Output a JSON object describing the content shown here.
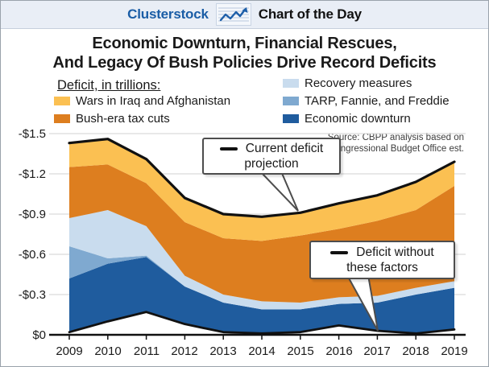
{
  "header": {
    "brand": "Clusterstock",
    "tagline": "Chart of the Day",
    "brand_color": "#1a5da6",
    "icon": "line-chart-icon"
  },
  "title": {
    "line1": "Economic Downturn, Financial Rescues,",
    "line2": "And Legacy Of Bush Policies Drive Record Deficits"
  },
  "legend": {
    "heading": "Deficit, in trillions:",
    "items": [
      {
        "label": "Wars in Iraq and Afghanistan",
        "color": "#FBC052"
      },
      {
        "label": "Bush-era tax cuts",
        "color": "#DD7E1F"
      },
      {
        "label": "Recovery measures",
        "color": "#C9DCEE"
      },
      {
        "label": "TARP, Fannie, and Freddie",
        "color": "#7FA9D0"
      },
      {
        "label": "Economic downturn",
        "color": "#1F5C9E"
      }
    ]
  },
  "source": {
    "line1": "Source: CBPP analysis based on",
    "line2": "Congressional Budget Office est."
  },
  "callouts": [
    {
      "line1": "Current deficit",
      "line2": "projection"
    },
    {
      "line1": "Deficit without",
      "line2": "these factors"
    }
  ],
  "chart_data": {
    "type": "area",
    "stacked": true,
    "title": "Deficit, in trillions",
    "units": "trillions of dollars, deficits shown as negative",
    "x": [
      2009,
      2010,
      2011,
      2012,
      2013,
      2014,
      2015,
      2016,
      2017,
      2018,
      2019
    ],
    "x_labels": [
      "2009",
      "2010",
      "2011",
      "2012",
      "2013",
      "2014",
      "2015",
      "2016",
      "2017",
      "2018",
      "2019"
    ],
    "y_ticks": [
      {
        "label": "$0",
        "value": 0
      },
      {
        "label": "-$0.3",
        "value": 0.3
      },
      {
        "label": "-$0.6",
        "value": 0.6
      },
      {
        "label": "-$0.9",
        "value": 0.9
      },
      {
        "label": "-$1.2",
        "value": 1.2
      },
      {
        "label": "-$1.5",
        "value": 1.5
      }
    ],
    "ylim": [
      0,
      1.5
    ],
    "grid": true,
    "legend_position": "top",
    "baseline": {
      "name": "Deficit without these factors",
      "color": "#111111",
      "values": [
        0.02,
        0.1,
        0.17,
        0.08,
        0.02,
        0.01,
        0.02,
        0.07,
        0.03,
        0.01,
        0.04
      ]
    },
    "series": [
      {
        "name": "Economic downturn",
        "color": "#1F5C9E",
        "values": [
          0.4,
          0.43,
          0.41,
          0.28,
          0.22,
          0.18,
          0.17,
          0.16,
          0.21,
          0.29,
          0.31
        ]
      },
      {
        "name": "TARP, Fannie, and Freddie",
        "color": "#7FA9D0",
        "values": [
          0.24,
          0.04,
          0.01,
          0.0,
          0.0,
          0.0,
          0.0,
          0.0,
          0.0,
          0.0,
          0.0
        ]
      },
      {
        "name": "Recovery measures",
        "color": "#C9DCEE",
        "values": [
          0.21,
          0.36,
          0.22,
          0.08,
          0.06,
          0.06,
          0.05,
          0.05,
          0.05,
          0.05,
          0.05
        ]
      },
      {
        "name": "Bush-era tax cuts",
        "color": "#DD7E1F",
        "values": [
          0.38,
          0.34,
          0.32,
          0.4,
          0.42,
          0.45,
          0.5,
          0.51,
          0.56,
          0.58,
          0.71
        ]
      },
      {
        "name": "Wars in Iraq and Afghanistan",
        "color": "#FBC052",
        "values": [
          0.18,
          0.19,
          0.18,
          0.18,
          0.18,
          0.18,
          0.17,
          0.19,
          0.19,
          0.21,
          0.18
        ]
      }
    ],
    "total": {
      "name": "Current deficit projection",
      "color": "#111111",
      "values": [
        1.43,
        1.46,
        1.31,
        1.02,
        0.9,
        0.88,
        0.91,
        0.98,
        1.04,
        1.14,
        1.29
      ]
    }
  }
}
